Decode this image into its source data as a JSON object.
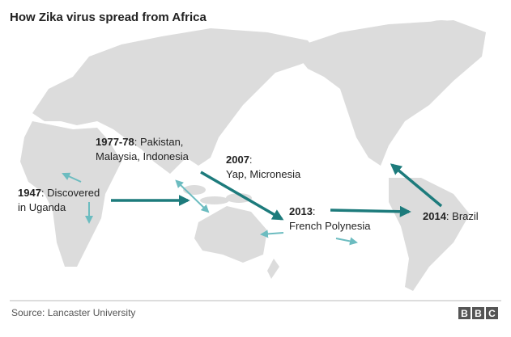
{
  "title": "How Zika virus spread from Africa",
  "events": [
    {
      "year": "1947",
      "line1": ": Discovered",
      "line2": "in Uganda"
    },
    {
      "year": "1977-78",
      "line1": ": Pakistan,",
      "line2": "Malaysia, Indonesia"
    },
    {
      "year": "2007",
      "line1": ":",
      "line2": "Yap, Micronesia"
    },
    {
      "year": "2013",
      "line1": ":",
      "line2": "French Polynesia"
    },
    {
      "year": "2014",
      "line1": ": Brazil"
    }
  ],
  "source": "Source: Lancaster University",
  "logo": [
    "B",
    "B",
    "C"
  ]
}
